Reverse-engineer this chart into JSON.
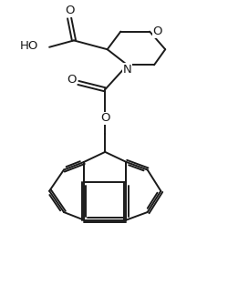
{
  "background_color": "#ffffff",
  "line_color": "#1a1a1a",
  "line_width": 1.4,
  "font_size": 8.5,
  "figsize": [
    2.5,
    3.24
  ],
  "dpi": 100,
  "xlim": [
    0,
    10
  ],
  "ylim": [
    0,
    13
  ]
}
